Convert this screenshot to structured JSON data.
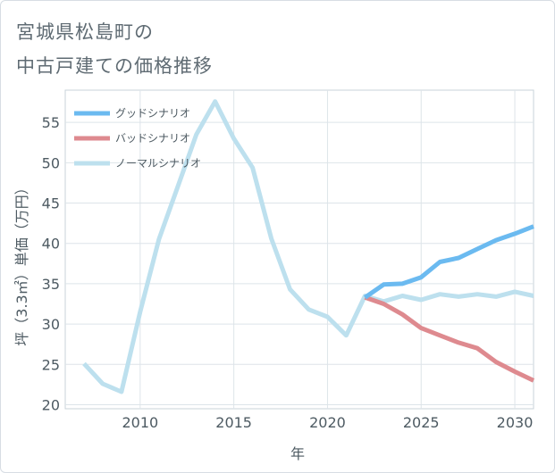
{
  "title": {
    "line1": "宮城県松島町の",
    "line2": "中古戸建ての価格推移"
  },
  "chart_data": {
    "type": "line",
    "xlabel": "年",
    "ylabel": "坪（3.3㎡）単価（万円）",
    "xlim": [
      2006,
      2031
    ],
    "ylim": [
      19.5,
      59
    ],
    "xticks": [
      2010,
      2015,
      2020,
      2025,
      2030
    ],
    "yticks": [
      20,
      25,
      30,
      35,
      40,
      45,
      50,
      55
    ],
    "grid": true,
    "legend_position": "top-left",
    "series": [
      {
        "name": "グッドシナリオ",
        "color": "#6bbaf0",
        "x": [
          2022,
          2023,
          2024,
          2025,
          2026,
          2027,
          2028,
          2029,
          2030,
          2031
        ],
        "y": [
          33.3,
          34.9,
          35.0,
          35.8,
          37.7,
          38.2,
          39.3,
          40.4,
          41.2,
          42.1
        ]
      },
      {
        "name": "バッドシナリオ",
        "color": "#de8a8f",
        "x": [
          2022,
          2023,
          2024,
          2025,
          2026,
          2027,
          2028,
          2029,
          2030,
          2031
        ],
        "y": [
          33.3,
          32.5,
          31.2,
          29.5,
          28.6,
          27.7,
          27.0,
          25.3,
          24.1,
          23.0
        ]
      },
      {
        "name": "ノーマルシナリオ",
        "color": "#bde0ee",
        "x": [
          2007,
          2008,
          2009,
          2010,
          2011,
          2012,
          2013,
          2014,
          2015,
          2016,
          2017,
          2018,
          2019,
          2020,
          2021,
          2022,
          2023,
          2024,
          2025,
          2026,
          2027,
          2028,
          2029,
          2030,
          2031
        ],
        "y": [
          25.1,
          22.6,
          21.6,
          31.5,
          40.5,
          47.0,
          53.5,
          57.6,
          53.0,
          49.4,
          40.6,
          34.3,
          31.8,
          30.9,
          28.6,
          33.5,
          32.8,
          33.5,
          33.0,
          33.7,
          33.4,
          33.7,
          33.4,
          34.0,
          33.5
        ]
      }
    ]
  }
}
